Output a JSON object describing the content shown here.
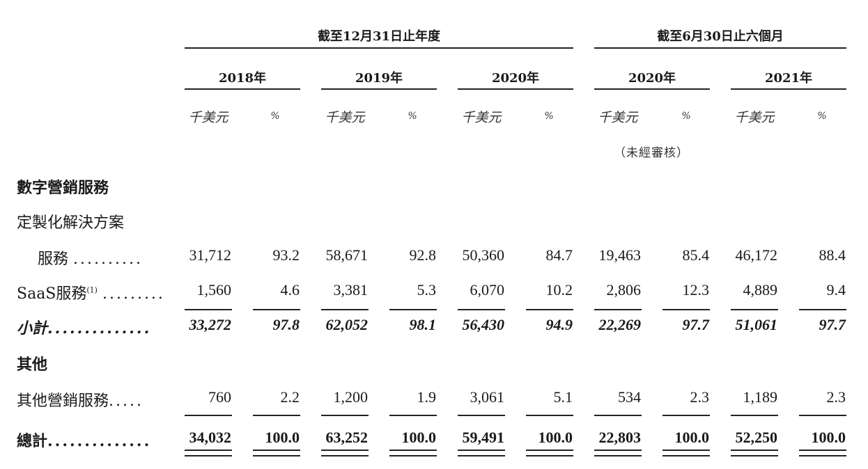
{
  "header": {
    "group_fy": "截至12月31日止年度",
    "group_6m": "截至6月30日止六個月",
    "years": [
      "2018年",
      "2019年",
      "2020年",
      "2020年",
      "2021年"
    ],
    "unit_amount": "千美元",
    "unit_pct": "%",
    "unaudited_note": "（未經審核）"
  },
  "sections": {
    "digital_marketing": "數字營銷服務",
    "custom_solutions": "定製化解決方案",
    "other": "其他"
  },
  "rows": [
    {
      "label": "服務",
      "dots": "..........",
      "values": [
        "31,712",
        "93.2",
        "58,671",
        "92.8",
        "50,360",
        "84.7",
        "19,463",
        "85.4",
        "46,172",
        "88.4"
      ]
    },
    {
      "label": "SaaS服務",
      "sup": "(1)",
      "dots": ".........",
      "values": [
        "1,560",
        "4.6",
        "3,381",
        "5.3",
        "6,070",
        "10.2",
        "2,806",
        "12.3",
        "4,889",
        "9.4"
      ]
    },
    {
      "label": "小計",
      "dots": "..............",
      "values": [
        "33,272",
        "97.8",
        "62,052",
        "98.1",
        "56,430",
        "94.9",
        "22,269",
        "97.7",
        "51,061",
        "97.7"
      ]
    },
    {
      "label": "其他營銷服務",
      "dots": ".....",
      "values": [
        "760",
        "2.2",
        "1,200",
        "1.9",
        "3,061",
        "5.1",
        "534",
        "2.3",
        "1,189",
        "2.3"
      ]
    },
    {
      "label": "總計",
      "dots": "..............",
      "values": [
        "34,032",
        "100.0",
        "63,252",
        "100.0",
        "59,491",
        "100.0",
        "22,803",
        "100.0",
        "52,250",
        "100.0"
      ]
    }
  ]
}
